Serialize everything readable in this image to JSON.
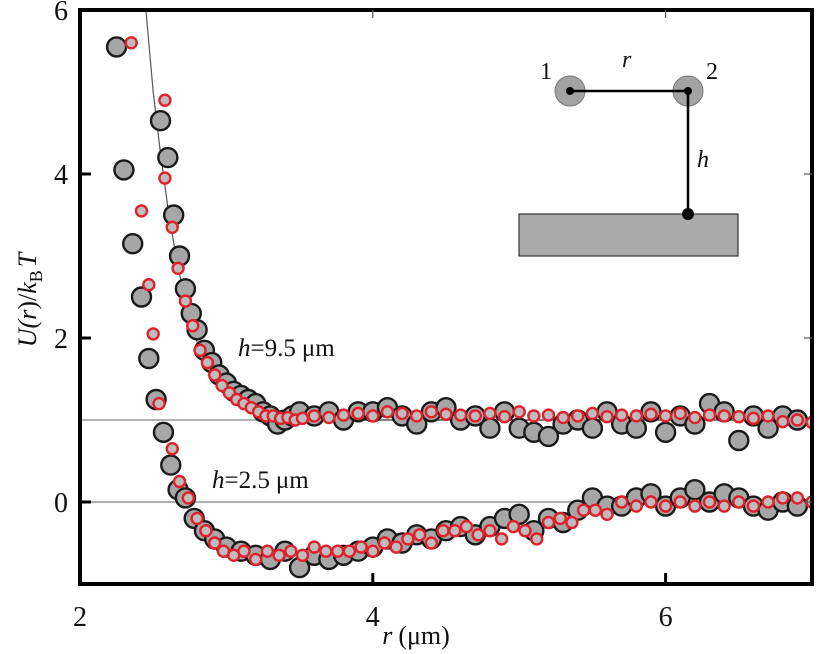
{
  "chart_data": {
    "type": "scatter",
    "title": "",
    "xlabel": "r (μm)",
    "xlabel_parts": {
      "var": "r",
      "unit": "(μm)"
    },
    "ylabel": "U(r)/k_B T",
    "ylabel_parts": {
      "u": "U(",
      "r": "r",
      "close": ")/",
      "k": "k",
      "sub": "B",
      "t": "T"
    },
    "xlim": [
      2,
      7
    ],
    "ylim": [
      -1,
      6
    ],
    "xticks": [
      2,
      4,
      6
    ],
    "xtick_labels": [
      "2",
      "4",
      "6"
    ],
    "yticks": [
      0,
      2,
      4,
      6
    ],
    "ytick_labels": [
      "0",
      "2",
      "4",
      "6"
    ],
    "reference_lines": [
      0,
      1
    ],
    "grid": false,
    "annotations": [
      {
        "text": "h = 9.5 μm",
        "var": "h",
        "eq": "=",
        "value": "9.5",
        "unit": "μm"
      },
      {
        "text": "h = 2.5 μm",
        "var": "h",
        "eq": "=",
        "value": "2.5",
        "unit": "μm"
      }
    ],
    "inset": {
      "particle_1": "1",
      "particle_2": "2",
      "separation": "r",
      "height": "h"
    },
    "colors": {
      "gray_fill": "#a6a6a6",
      "gray_edge": "#1a1a1a",
      "red_edge": "#e0202a",
      "red_fill": "#bdbdbd",
      "fit_line": "#555555",
      "ref_line": "#999999",
      "wall": "#a9a9a9"
    },
    "fit_curve": {
      "name": "fit h=9.5",
      "x": [
        2.45,
        2.5,
        2.55,
        2.6,
        2.65,
        2.7,
        2.75,
        2.8,
        2.9,
        3.0,
        3.1,
        3.2,
        3.3,
        3.4,
        3.5,
        3.7,
        4.0,
        4.5,
        5.0,
        6.0,
        7.0
      ],
      "y": [
        6.0,
        5.0,
        4.25,
        3.6,
        3.05,
        2.6,
        2.25,
        1.95,
        1.6,
        1.38,
        1.22,
        1.12,
        1.06,
        1.03,
        1.01,
        1.0,
        1.0,
        1.0,
        1.0,
        1.0,
        1.0
      ]
    },
    "series": [
      {
        "name": "h=9.5 μm (gray)",
        "marker": "gray",
        "x": [
          2.55,
          2.6,
          2.64,
          2.68,
          2.72,
          2.76,
          2.8,
          2.85,
          2.9,
          2.95,
          3.0,
          3.05,
          3.1,
          3.15,
          3.2,
          3.25,
          3.3,
          3.35,
          3.4,
          3.45,
          3.5,
          3.6,
          3.7,
          3.8,
          3.9,
          4.0,
          4.1,
          4.2,
          4.3,
          4.4,
          4.5,
          4.6,
          4.7,
          4.8,
          4.9,
          5.0,
          5.1,
          5.2,
          5.3,
          5.4,
          5.5,
          5.6,
          5.7,
          5.8,
          5.9,
          6.0,
          6.1,
          6.2,
          6.3,
          6.4,
          6.5,
          6.6,
          6.7,
          6.8,
          6.9
        ],
        "y": [
          4.65,
          4.2,
          3.5,
          3.0,
          2.6,
          2.3,
          2.1,
          1.85,
          1.7,
          1.55,
          1.45,
          1.35,
          1.3,
          1.25,
          1.2,
          1.1,
          1.05,
          0.95,
          1.0,
          1.05,
          1.1,
          1.05,
          1.1,
          1.0,
          1.1,
          1.1,
          1.15,
          1.05,
          0.95,
          1.1,
          1.15,
          1.0,
          1.05,
          0.9,
          1.1,
          0.9,
          0.85,
          0.8,
          0.95,
          1.0,
          0.9,
          1.1,
          0.95,
          0.9,
          1.1,
          0.85,
          1.05,
          0.95,
          1.2,
          1.1,
          0.75,
          1.05,
          0.9,
          1.05,
          1.0
        ]
      },
      {
        "name": "h=9.5 μm (red)",
        "marker": "red",
        "x": [
          2.58,
          2.63,
          2.67,
          2.72,
          2.77,
          2.82,
          2.87,
          2.92,
          2.97,
          3.02,
          3.07,
          3.12,
          3.17,
          3.22,
          3.27,
          3.32,
          3.37,
          3.42,
          3.47,
          3.52,
          3.6,
          3.7,
          3.8,
          3.9,
          4.0,
          4.1,
          4.2,
          4.3,
          4.4,
          4.5,
          4.6,
          4.7,
          4.8,
          4.9,
          5.0,
          5.1,
          5.2,
          5.3,
          5.4,
          5.5,
          5.6,
          5.7,
          5.8,
          5.9,
          6.0,
          6.1,
          6.2,
          6.3,
          6.4,
          6.5,
          6.6,
          6.7,
          6.8,
          6.9,
          7.0
        ],
        "y": [
          3.95,
          3.35,
          2.85,
          2.45,
          2.15,
          1.85,
          1.7,
          1.55,
          1.42,
          1.33,
          1.25,
          1.2,
          1.15,
          1.1,
          1.05,
          1.05,
          1.02,
          1.03,
          1.0,
          1.02,
          1.05,
          1.03,
          1.06,
          1.08,
          1.05,
          1.1,
          1.08,
          1.05,
          1.1,
          1.07,
          1.06,
          1.05,
          1.08,
          1.04,
          1.1,
          1.05,
          1.06,
          1.03,
          1.05,
          1.08,
          1.04,
          1.06,
          1.05,
          1.07,
          1.05,
          1.08,
          1.03,
          1.06,
          1.05,
          1.04,
          1.02,
          1.05,
          0.98,
          1.0,
          0.97
        ]
      },
      {
        "name": "h=2.5 μm (gray)",
        "marker": "gray",
        "x": [
          2.25,
          2.3,
          2.36,
          2.42,
          2.47,
          2.52,
          2.57,
          2.62,
          2.67,
          2.72,
          2.78,
          2.85,
          2.92,
          3.0,
          3.1,
          3.2,
          3.3,
          3.4,
          3.5,
          3.6,
          3.7,
          3.8,
          3.9,
          4.0,
          4.1,
          4.2,
          4.3,
          4.4,
          4.5,
          4.6,
          4.7,
          4.8,
          4.9,
          5.0,
          5.1,
          5.2,
          5.3,
          5.4,
          5.5,
          5.6,
          5.7,
          5.8,
          5.9,
          6.0,
          6.1,
          6.2,
          6.3,
          6.4,
          6.5,
          6.6,
          6.7,
          6.8,
          6.9
        ],
        "y": [
          5.55,
          4.05,
          3.15,
          2.5,
          1.75,
          1.25,
          0.85,
          0.45,
          0.15,
          0.05,
          -0.2,
          -0.35,
          -0.45,
          -0.55,
          -0.6,
          -0.65,
          -0.7,
          -0.6,
          -0.8,
          -0.65,
          -0.7,
          -0.65,
          -0.6,
          -0.55,
          -0.45,
          -0.5,
          -0.4,
          -0.45,
          -0.35,
          -0.3,
          -0.4,
          -0.3,
          -0.2,
          -0.15,
          -0.35,
          -0.2,
          -0.25,
          -0.1,
          0.05,
          -0.05,
          -0.05,
          0.05,
          0.1,
          -0.05,
          0.05,
          0.15,
          0.0,
          0.1,
          0.05,
          -0.05,
          -0.1,
          0.0,
          -0.05
        ]
      },
      {
        "name": "h=2.5 μm (red)",
        "marker": "red",
        "x": [
          2.35,
          2.42,
          2.47,
          2.5,
          2.54,
          2.58,
          2.63,
          2.68,
          2.74,
          2.8,
          2.86,
          2.92,
          2.98,
          3.05,
          3.12,
          3.2,
          3.28,
          3.36,
          3.44,
          3.52,
          3.6,
          3.68,
          3.76,
          3.84,
          3.92,
          4.0,
          4.08,
          4.16,
          4.24,
          4.32,
          4.4,
          4.48,
          4.56,
          4.64,
          4.72,
          4.8,
          4.88,
          4.96,
          5.04,
          5.12,
          5.2,
          5.28,
          5.36,
          5.44,
          5.52,
          5.6,
          5.7,
          5.8,
          5.9,
          6.0,
          6.1,
          6.2,
          6.3,
          6.4,
          6.5,
          6.6,
          6.7,
          6.8,
          6.9,
          7.0
        ],
        "y": [
          5.6,
          3.55,
          2.65,
          2.05,
          1.2,
          4.9,
          0.65,
          0.25,
          0.05,
          -0.2,
          -0.35,
          -0.5,
          -0.6,
          -0.65,
          -0.6,
          -0.7,
          -0.6,
          -0.65,
          -0.6,
          -0.65,
          -0.55,
          -0.6,
          -0.6,
          -0.6,
          -0.55,
          -0.6,
          -0.5,
          -0.55,
          -0.45,
          -0.4,
          -0.5,
          -0.35,
          -0.35,
          -0.3,
          -0.4,
          -0.35,
          -0.45,
          -0.3,
          -0.35,
          -0.45,
          -0.25,
          -0.2,
          -0.25,
          -0.1,
          -0.1,
          -0.15,
          0.0,
          -0.05,
          0.0,
          -0.05,
          0.0,
          -0.05,
          0.0,
          -0.05,
          0.0,
          -0.05,
          0.0,
          0.05,
          0.05,
          0.0
        ]
      }
    ]
  }
}
